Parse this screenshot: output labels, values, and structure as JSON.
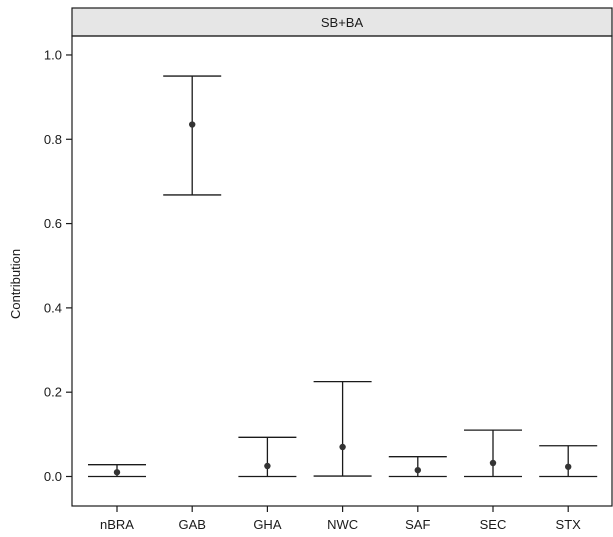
{
  "chart_data": {
    "type": "errorbar",
    "panel_title": "SB+BA",
    "xlabel": "",
    "ylabel": "Contribution",
    "ylim": [
      -0.07,
      1.045
    ],
    "yticks": [
      0.0,
      0.2,
      0.4,
      0.6,
      0.8,
      1.0
    ],
    "ytick_labels": [
      "0.0",
      "0.2",
      "0.4",
      "0.6",
      "0.8",
      "1.0"
    ],
    "grid": false,
    "categories": [
      "nBRA",
      "GAB",
      "GHA",
      "NWC",
      "SAF",
      "SEC",
      "STX"
    ],
    "points": [
      {
        "category": "nBRA",
        "estimate": 0.01,
        "lower": 0.0,
        "upper": 0.028
      },
      {
        "category": "GAB",
        "estimate": 0.835,
        "lower": 0.668,
        "upper": 0.95
      },
      {
        "category": "GHA",
        "estimate": 0.025,
        "lower": 0.0,
        "upper": 0.093
      },
      {
        "category": "NWC",
        "estimate": 0.07,
        "lower": 0.001,
        "upper": 0.225
      },
      {
        "category": "SAF",
        "estimate": 0.015,
        "lower": 0.0,
        "upper": 0.047
      },
      {
        "category": "SEC",
        "estimate": 0.032,
        "lower": 0.0,
        "upper": 0.11
      },
      {
        "category": "STX",
        "estimate": 0.023,
        "lower": 0.0,
        "upper": 0.073
      }
    ],
    "colors": {
      "line": "#1a1a1a",
      "point": "#333333",
      "strip_fill": "#e6e6e6",
      "frame": "#1a1a1a"
    }
  }
}
